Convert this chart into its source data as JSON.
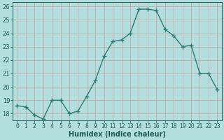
{
  "x": [
    0,
    1,
    2,
    3,
    4,
    5,
    6,
    7,
    8,
    9,
    10,
    11,
    12,
    13,
    14,
    15,
    16,
    17,
    18,
    19,
    20,
    21,
    22,
    23
  ],
  "y": [
    18.6,
    18.5,
    17.9,
    17.6,
    19.0,
    19.0,
    18.0,
    18.2,
    19.3,
    20.5,
    22.3,
    23.4,
    23.5,
    24.0,
    25.8,
    25.8,
    25.7,
    24.3,
    23.8,
    23.0,
    23.1,
    21.0,
    21.0,
    19.8
  ],
  "line_color": "#2d7d6e",
  "marker": "+",
  "marker_size": 4,
  "marker_linewidth": 1.0,
  "line_width": 1.0,
  "bg_color": "#b2dede",
  "grid_color_major": "#c8a8a8",
  "grid_color_minor": "#c8a8a8",
  "axis_color": "#1a5c52",
  "tick_label_color": "#1a5c52",
  "xlabel": "Humidex (Indice chaleur)",
  "xlabel_fontsize": 7,
  "xlabel_fontweight": "bold",
  "xlim": [
    -0.5,
    23.5
  ],
  "ylim": [
    17.5,
    26.3
  ],
  "yticks": [
    18,
    19,
    20,
    21,
    22,
    23,
    24,
    25,
    26
  ],
  "ytick_labels": [
    "18",
    "19",
    "20",
    "21",
    "22",
    "23",
    "24",
    "25",
    "26"
  ],
  "xticks": [
    0,
    1,
    2,
    3,
    4,
    5,
    6,
    7,
    8,
    9,
    10,
    11,
    12,
    13,
    14,
    15,
    16,
    17,
    18,
    19,
    20,
    21,
    22,
    23
  ],
  "tick_fontsize": 5.5,
  "ytick_fontsize": 6.0,
  "figsize": [
    3.2,
    2.0
  ],
  "dpi": 100
}
